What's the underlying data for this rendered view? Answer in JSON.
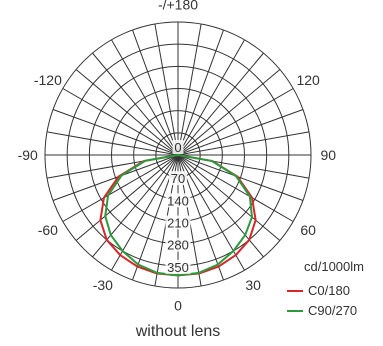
{
  "chart_data": {
    "type": "polar",
    "caption": "without lens",
    "unit_label": "cd/1000lm",
    "radial_ticks": [
      "0",
      "70",
      "140",
      "210",
      "280",
      "350"
    ],
    "radial_max": 420,
    "angle_labels": [
      {
        "angle": 0,
        "text": "0"
      },
      {
        "angle": 30,
        "text": "30"
      },
      {
        "angle": -30,
        "text": "-30"
      },
      {
        "angle": 60,
        "text": "60"
      },
      {
        "angle": -60,
        "text": "-60"
      },
      {
        "angle": 90,
        "text": "90"
      },
      {
        "angle": -90,
        "text": "-90"
      },
      {
        "angle": 120,
        "text": "120"
      },
      {
        "angle": -120,
        "text": "-120"
      },
      {
        "angle": 180,
        "text": "-/+180"
      }
    ],
    "series": [
      {
        "name": "C0/180",
        "color": "#d4272a",
        "angles": [
          -90,
          -80,
          -70,
          -60,
          -50,
          -40,
          -30,
          -20,
          -10,
          0,
          10,
          20,
          30,
          40,
          50,
          60,
          70,
          80,
          90
        ],
        "values": [
          0,
          110,
          200,
          270,
          320,
          350,
          365,
          375,
          380,
          380,
          380,
          375,
          365,
          350,
          320,
          270,
          200,
          110,
          0
        ]
      },
      {
        "name": "C90/270",
        "color": "#2a9a3c",
        "angles": [
          -90,
          -80,
          -70,
          -60,
          -50,
          -40,
          -30,
          -20,
          -10,
          0,
          10,
          20,
          30,
          40,
          50,
          60,
          70,
          80,
          90
        ],
        "values": [
          0,
          105,
          190,
          255,
          300,
          330,
          350,
          368,
          378,
          380,
          378,
          368,
          350,
          330,
          305,
          262,
          195,
          108,
          0
        ]
      }
    ]
  }
}
